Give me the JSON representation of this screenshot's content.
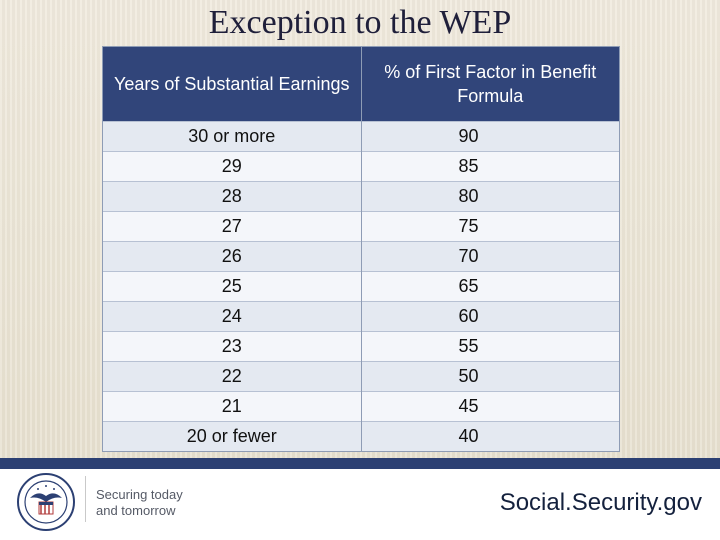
{
  "title": "Exception to the WEP",
  "table": {
    "headers": [
      "Years of Substantial Earnings",
      "% of First Factor in Benefit Formula"
    ],
    "rows": [
      [
        "30 or more",
        "90"
      ],
      [
        "29",
        "85"
      ],
      [
        "28",
        "80"
      ],
      [
        "27",
        "75"
      ],
      [
        "26",
        "70"
      ],
      [
        "25",
        "65"
      ],
      [
        "24",
        "60"
      ],
      [
        "23",
        "55"
      ],
      [
        "22",
        "50"
      ],
      [
        "21",
        "45"
      ],
      [
        "20 or fewer",
        "40"
      ]
    ]
  },
  "footer": {
    "tagline_line1": "Securing today",
    "tagline_line2": "and tomorrow",
    "site": "Social.Security.gov",
    "logo_icon": "social-security-seal-icon"
  },
  "colors": {
    "header": "#31457a",
    "row_dark": "#e4e9f1",
    "row_light": "#f4f6fa",
    "footer_bar": "#2c4073"
  }
}
